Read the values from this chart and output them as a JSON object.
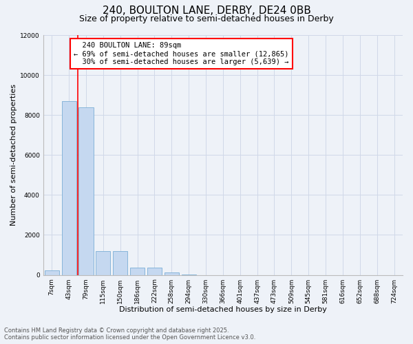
{
  "title_line1": "240, BOULTON LANE, DERBY, DE24 0BB",
  "title_line2": "Size of property relative to semi-detached houses in Derby",
  "xlabel": "Distribution of semi-detached houses by size in Derby",
  "ylabel": "Number of semi-detached properties",
  "bar_color": "#c5d8f0",
  "bar_edge_color": "#7aaed6",
  "categories": [
    "7sqm",
    "43sqm",
    "79sqm",
    "115sqm",
    "150sqm",
    "186sqm",
    "222sqm",
    "258sqm",
    "294sqm",
    "330sqm",
    "366sqm",
    "401sqm",
    "437sqm",
    "473sqm",
    "509sqm",
    "545sqm",
    "581sqm",
    "616sqm",
    "652sqm",
    "688sqm",
    "724sqm"
  ],
  "values": [
    230,
    8700,
    8400,
    1200,
    1200,
    370,
    370,
    130,
    10,
    0,
    0,
    0,
    0,
    0,
    0,
    0,
    0,
    0,
    0,
    0,
    0
  ],
  "ylim": [
    0,
    12000
  ],
  "yticks": [
    0,
    2000,
    4000,
    6000,
    8000,
    10000,
    12000
  ],
  "property_label": "240 BOULTON LANE: 89sqm",
  "pct_smaller": 69,
  "n_smaller": 12865,
  "pct_larger": 30,
  "n_larger": 5639,
  "vline_x": 1.5,
  "grid_color": "#d0d8e8",
  "background_color": "#eef2f8",
  "footer_line1": "Contains HM Land Registry data © Crown copyright and database right 2025.",
  "footer_line2": "Contains public sector information licensed under the Open Government Licence v3.0.",
  "title_fontsize": 11,
  "subtitle_fontsize": 9,
  "axis_label_fontsize": 8,
  "tick_fontsize": 6.5,
  "annotation_fontsize": 7.5,
  "footer_fontsize": 6
}
